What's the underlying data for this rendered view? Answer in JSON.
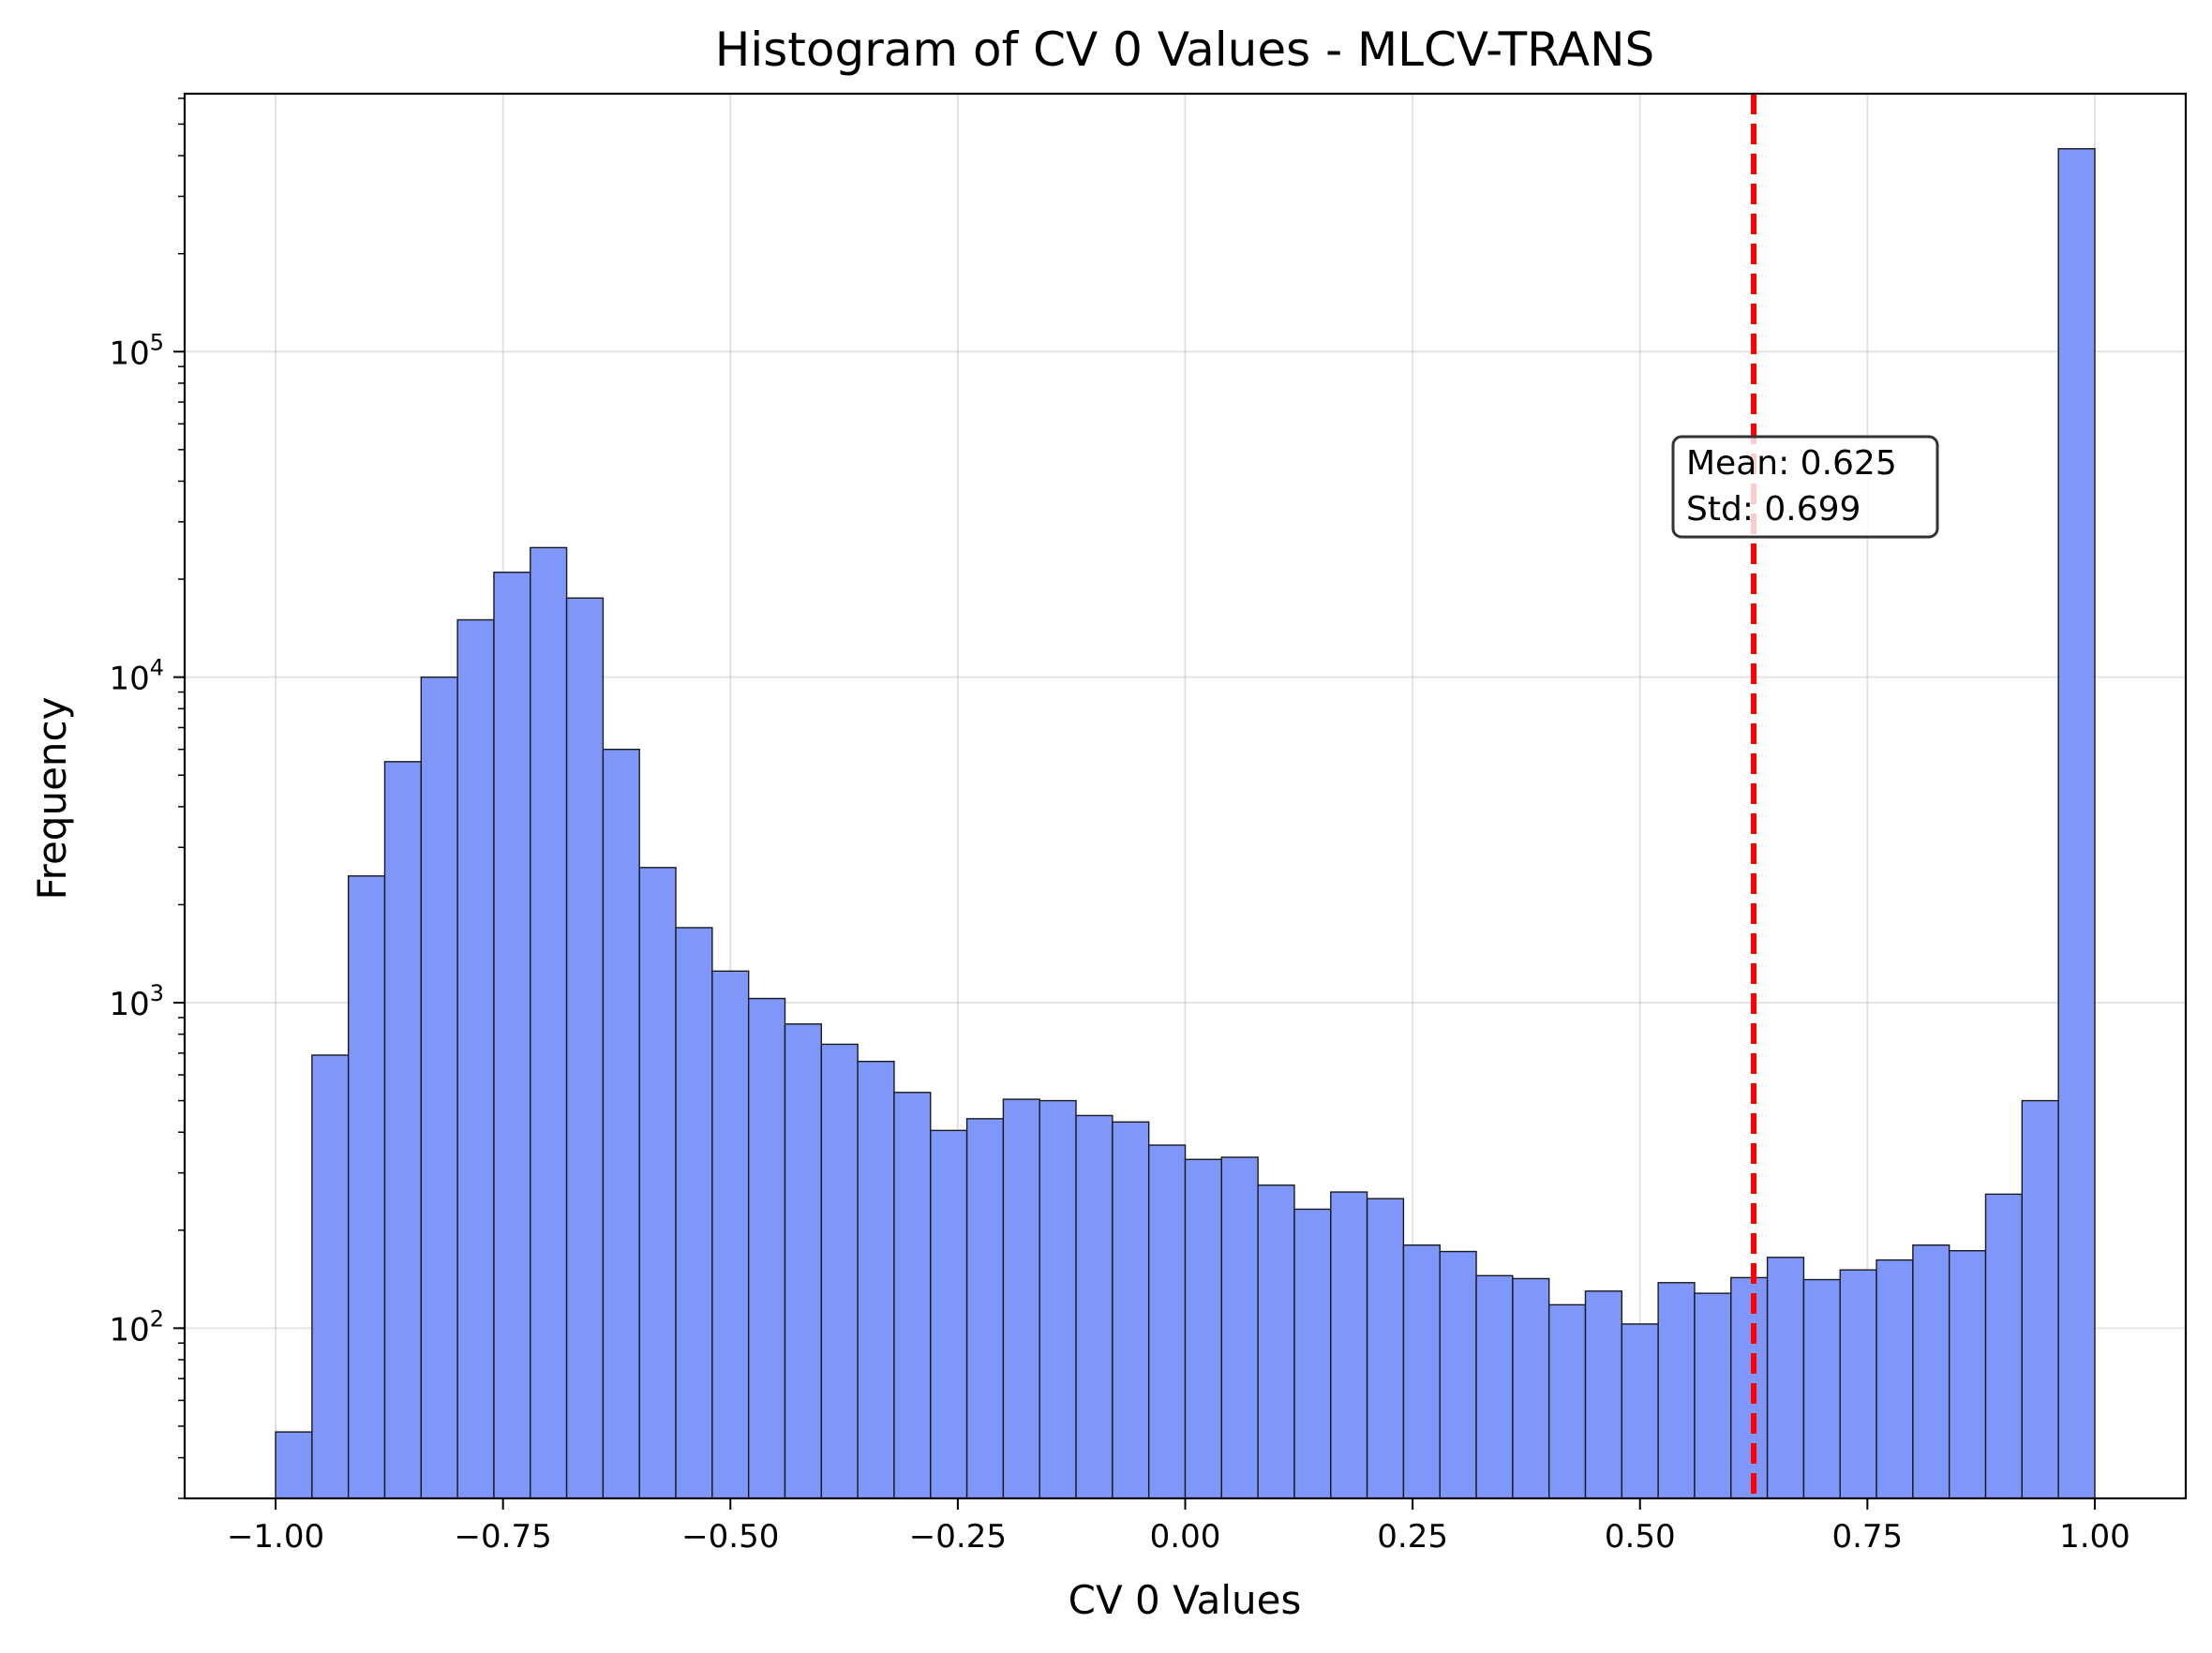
{
  "chart_data": {
    "type": "bar",
    "title": "Histogram of CV 0 Values - MLCV-TRANS",
    "xlabel": "CV 0 Values",
    "ylabel": "Frequency",
    "xlim": [
      -1.1,
      1.1
    ],
    "ylim": [
      30,
      620000
    ],
    "yscale": "log",
    "grid": true,
    "x_ticks": [
      -1.0,
      -0.75,
      -0.5,
      -0.25,
      0.0,
      0.25,
      0.5,
      0.75,
      1.0
    ],
    "x_tick_labels": [
      "−1.00",
      "−0.75",
      "−0.50",
      "−0.25",
      "0.00",
      "0.25",
      "0.50",
      "0.75",
      "1.00"
    ],
    "y_ticks": [
      {
        "value": 100,
        "base": "10",
        "exp": "2"
      },
      {
        "value": 1000,
        "base": "10",
        "exp": "3"
      },
      {
        "value": 10000,
        "base": "10",
        "exp": "4"
      },
      {
        "value": 100000,
        "base": "10",
        "exp": "5"
      }
    ],
    "bin_start": -1.0,
    "bin_width": 0.04,
    "values": [
      48,
      690,
      2450,
      5500,
      10000,
      15000,
      21000,
      25000,
      17500,
      6000,
      2600,
      1700,
      1250,
      1030,
      860,
      745,
      660,
      530,
      405,
      440,
      505,
      500,
      450,
      430,
      365,
      330,
      335,
      275,
      232,
      262,
      250,
      180,
      172,
      145,
      142,
      118,
      130,
      103,
      138,
      128,
      143,
      165,
      141,
      151,
      162,
      180,
      173,
      258,
      500,
      420000
    ],
    "bar_color": "#7f97fb",
    "bar_edge_color": "#1a1a1a",
    "mean_line": {
      "value": 0.625,
      "color": "#ff0000"
    },
    "annotation": {
      "mean_label": "Mean: 0.625",
      "std_label": "Std: 0.699"
    }
  }
}
